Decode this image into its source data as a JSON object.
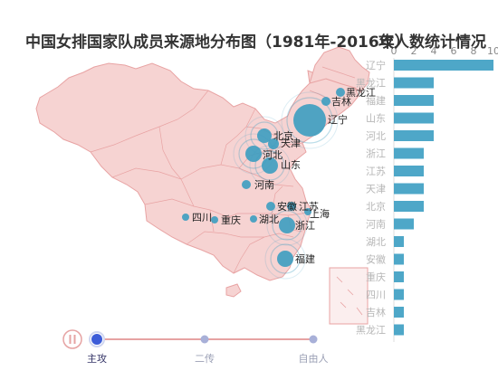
{
  "chart_data": {
    "type": "bar",
    "title": "中国女排国家队成员来源地分布图（1981年-2016年）",
    "subtitle": "攻人数统计情况",
    "categories": [
      "辽宁",
      "黑龙江",
      "福建",
      "山东",
      "河北",
      "浙江",
      "江苏",
      "天津",
      "北京",
      "河南",
      "湖北",
      "安徽",
      "重庆",
      "四川",
      "吉林",
      "黑龙江"
    ],
    "values": [
      10,
      4,
      4,
      4,
      4,
      3,
      3,
      3,
      3,
      2,
      1,
      1,
      1,
      1,
      1,
      1
    ],
    "xlim": [
      0,
      10
    ],
    "xticks": [
      0,
      2,
      4,
      6,
      8,
      10
    ],
    "bar_color": "#4ea7c8",
    "map_labels": [
      "黑龙江",
      "吉林",
      "辽宁",
      "北京",
      "天津",
      "河北",
      "山东",
      "河南",
      "安徽",
      "江苏",
      "上海",
      "湖北",
      "浙江",
      "四川",
      "重庆",
      "福建"
    ],
    "map_fill": "#f6d3d2",
    "map_stroke": "#e8a3a3",
    "bubble_color": "#3d9dc0"
  },
  "timeline": {
    "items": [
      "主攻",
      "二传",
      "自由人"
    ],
    "active": 0,
    "play_icon": "pause-icon"
  }
}
